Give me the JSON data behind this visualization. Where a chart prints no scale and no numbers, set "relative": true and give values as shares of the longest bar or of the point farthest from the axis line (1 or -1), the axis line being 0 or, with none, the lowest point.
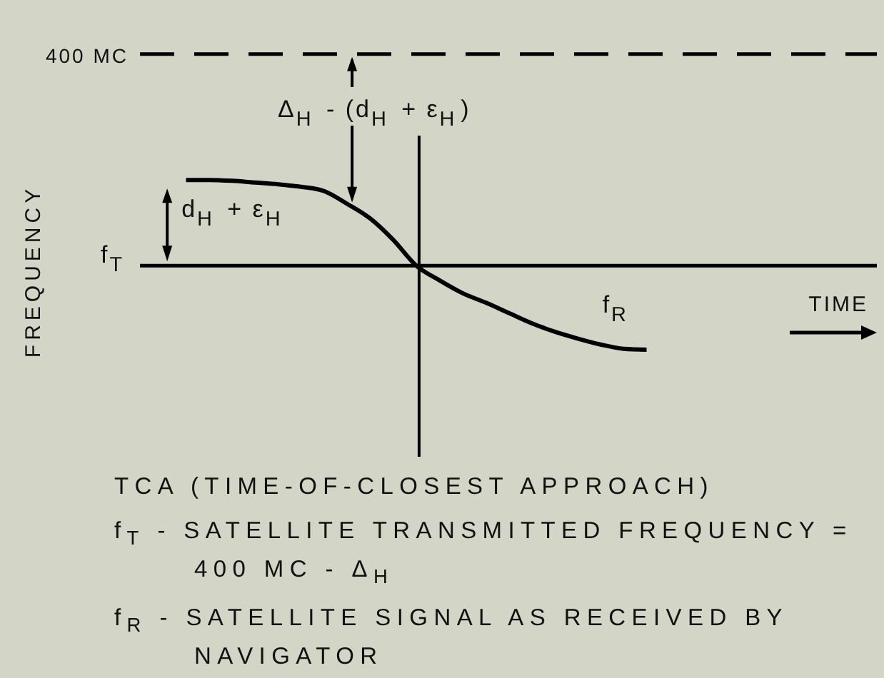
{
  "chart_data": {
    "type": "line",
    "relative": true,
    "ylabel": "FREQUENCY",
    "xlabel": "TIME",
    "categories": [
      null,
      null,
      null,
      null,
      null,
      null,
      null,
      null,
      null,
      null,
      null,
      null,
      null,
      null,
      null,
      null,
      null,
      null,
      null,
      null,
      null,
      null,
      null,
      null,
      null,
      null,
      null,
      null,
      null,
      null,
      null,
      null,
      null
    ],
    "series": [
      {
        "name": "f$_{R}$",
        "color": "#000000",
        "values": [
          null,
          null,
          1.0,
          1.0,
          0.99,
          0.97,
          0.95,
          0.92,
          0.87,
          0.72,
          0.55,
          0.3,
          0,
          -0.17,
          -0.32,
          -0.43,
          -0.55,
          -0.67,
          -0.77,
          -0.85,
          -0.92,
          -0.97,
          -0.98,
          null,
          null,
          null,
          null,
          null,
          null,
          null,
          null,
          null,
          null
        ]
      }
    ],
    "ref_lines": [
      {
        "axis": "y",
        "value": 2.47,
        "label": "400 MC",
        "line_style": "dashed",
        "color": "#000000"
      },
      {
        "axis": "y",
        "value": 0,
        "label": "f$_{T}$",
        "line_style": "solid",
        "color": "#000000"
      }
    ],
    "annotations": [
      "TCA (TIME-OF-CLOSEST APPROACH)",
      "Δ$_{H}$ - (d$_{H}$ + ε$_{H}$)",
      "d$_{H}$ + ε$_{H}$",
      "f$_{T}$ - SATELLITE TRANSMITTED FREQUENCY = 400 MC - Δ$_{H}$",
      "f$_{R}$ - SATELLITE SIGNAL AS RECEIVED BY NAVIGATOR"
    ]
  }
}
